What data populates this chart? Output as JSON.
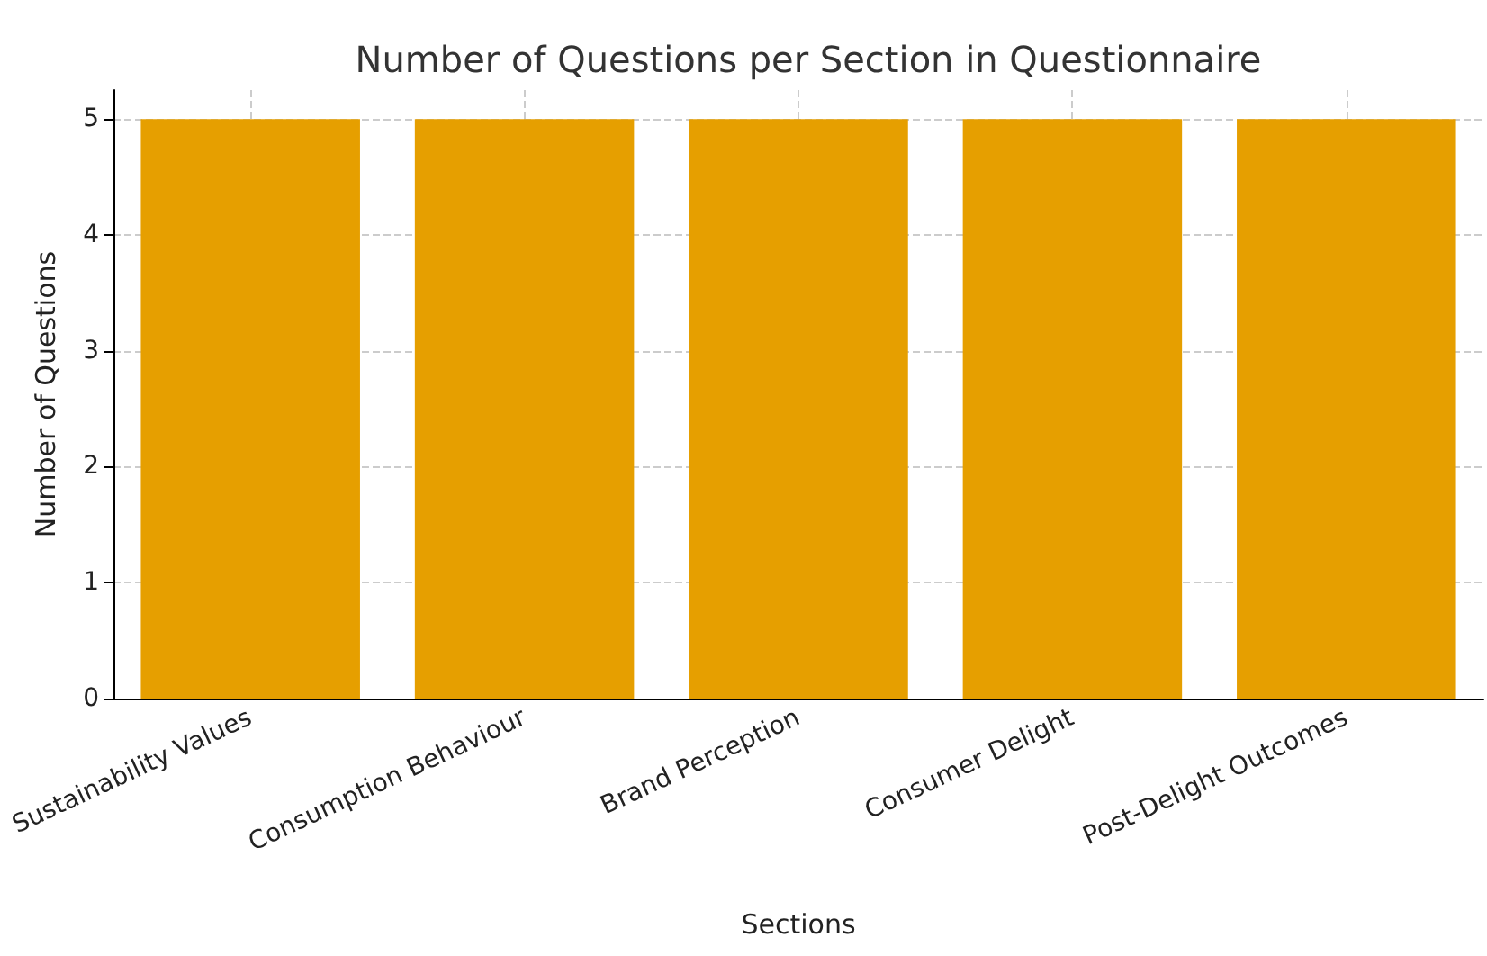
{
  "chart_data": {
    "type": "bar",
    "title": "Number of Questions per Section in Questionnaire",
    "xlabel": "Sections",
    "ylabel": "Number of Questions",
    "categories": [
      "Sustainability Values",
      "Consumption Behaviour",
      "Brand Perception",
      "Consumer Delight",
      "Post-Delight Outcomes"
    ],
    "values": [
      5,
      5,
      5,
      5,
      5
    ],
    "color": "#e69f00",
    "ylim": [
      0,
      5.25
    ],
    "yticks": [
      0,
      1,
      2,
      3,
      4,
      5
    ],
    "grid": true
  }
}
